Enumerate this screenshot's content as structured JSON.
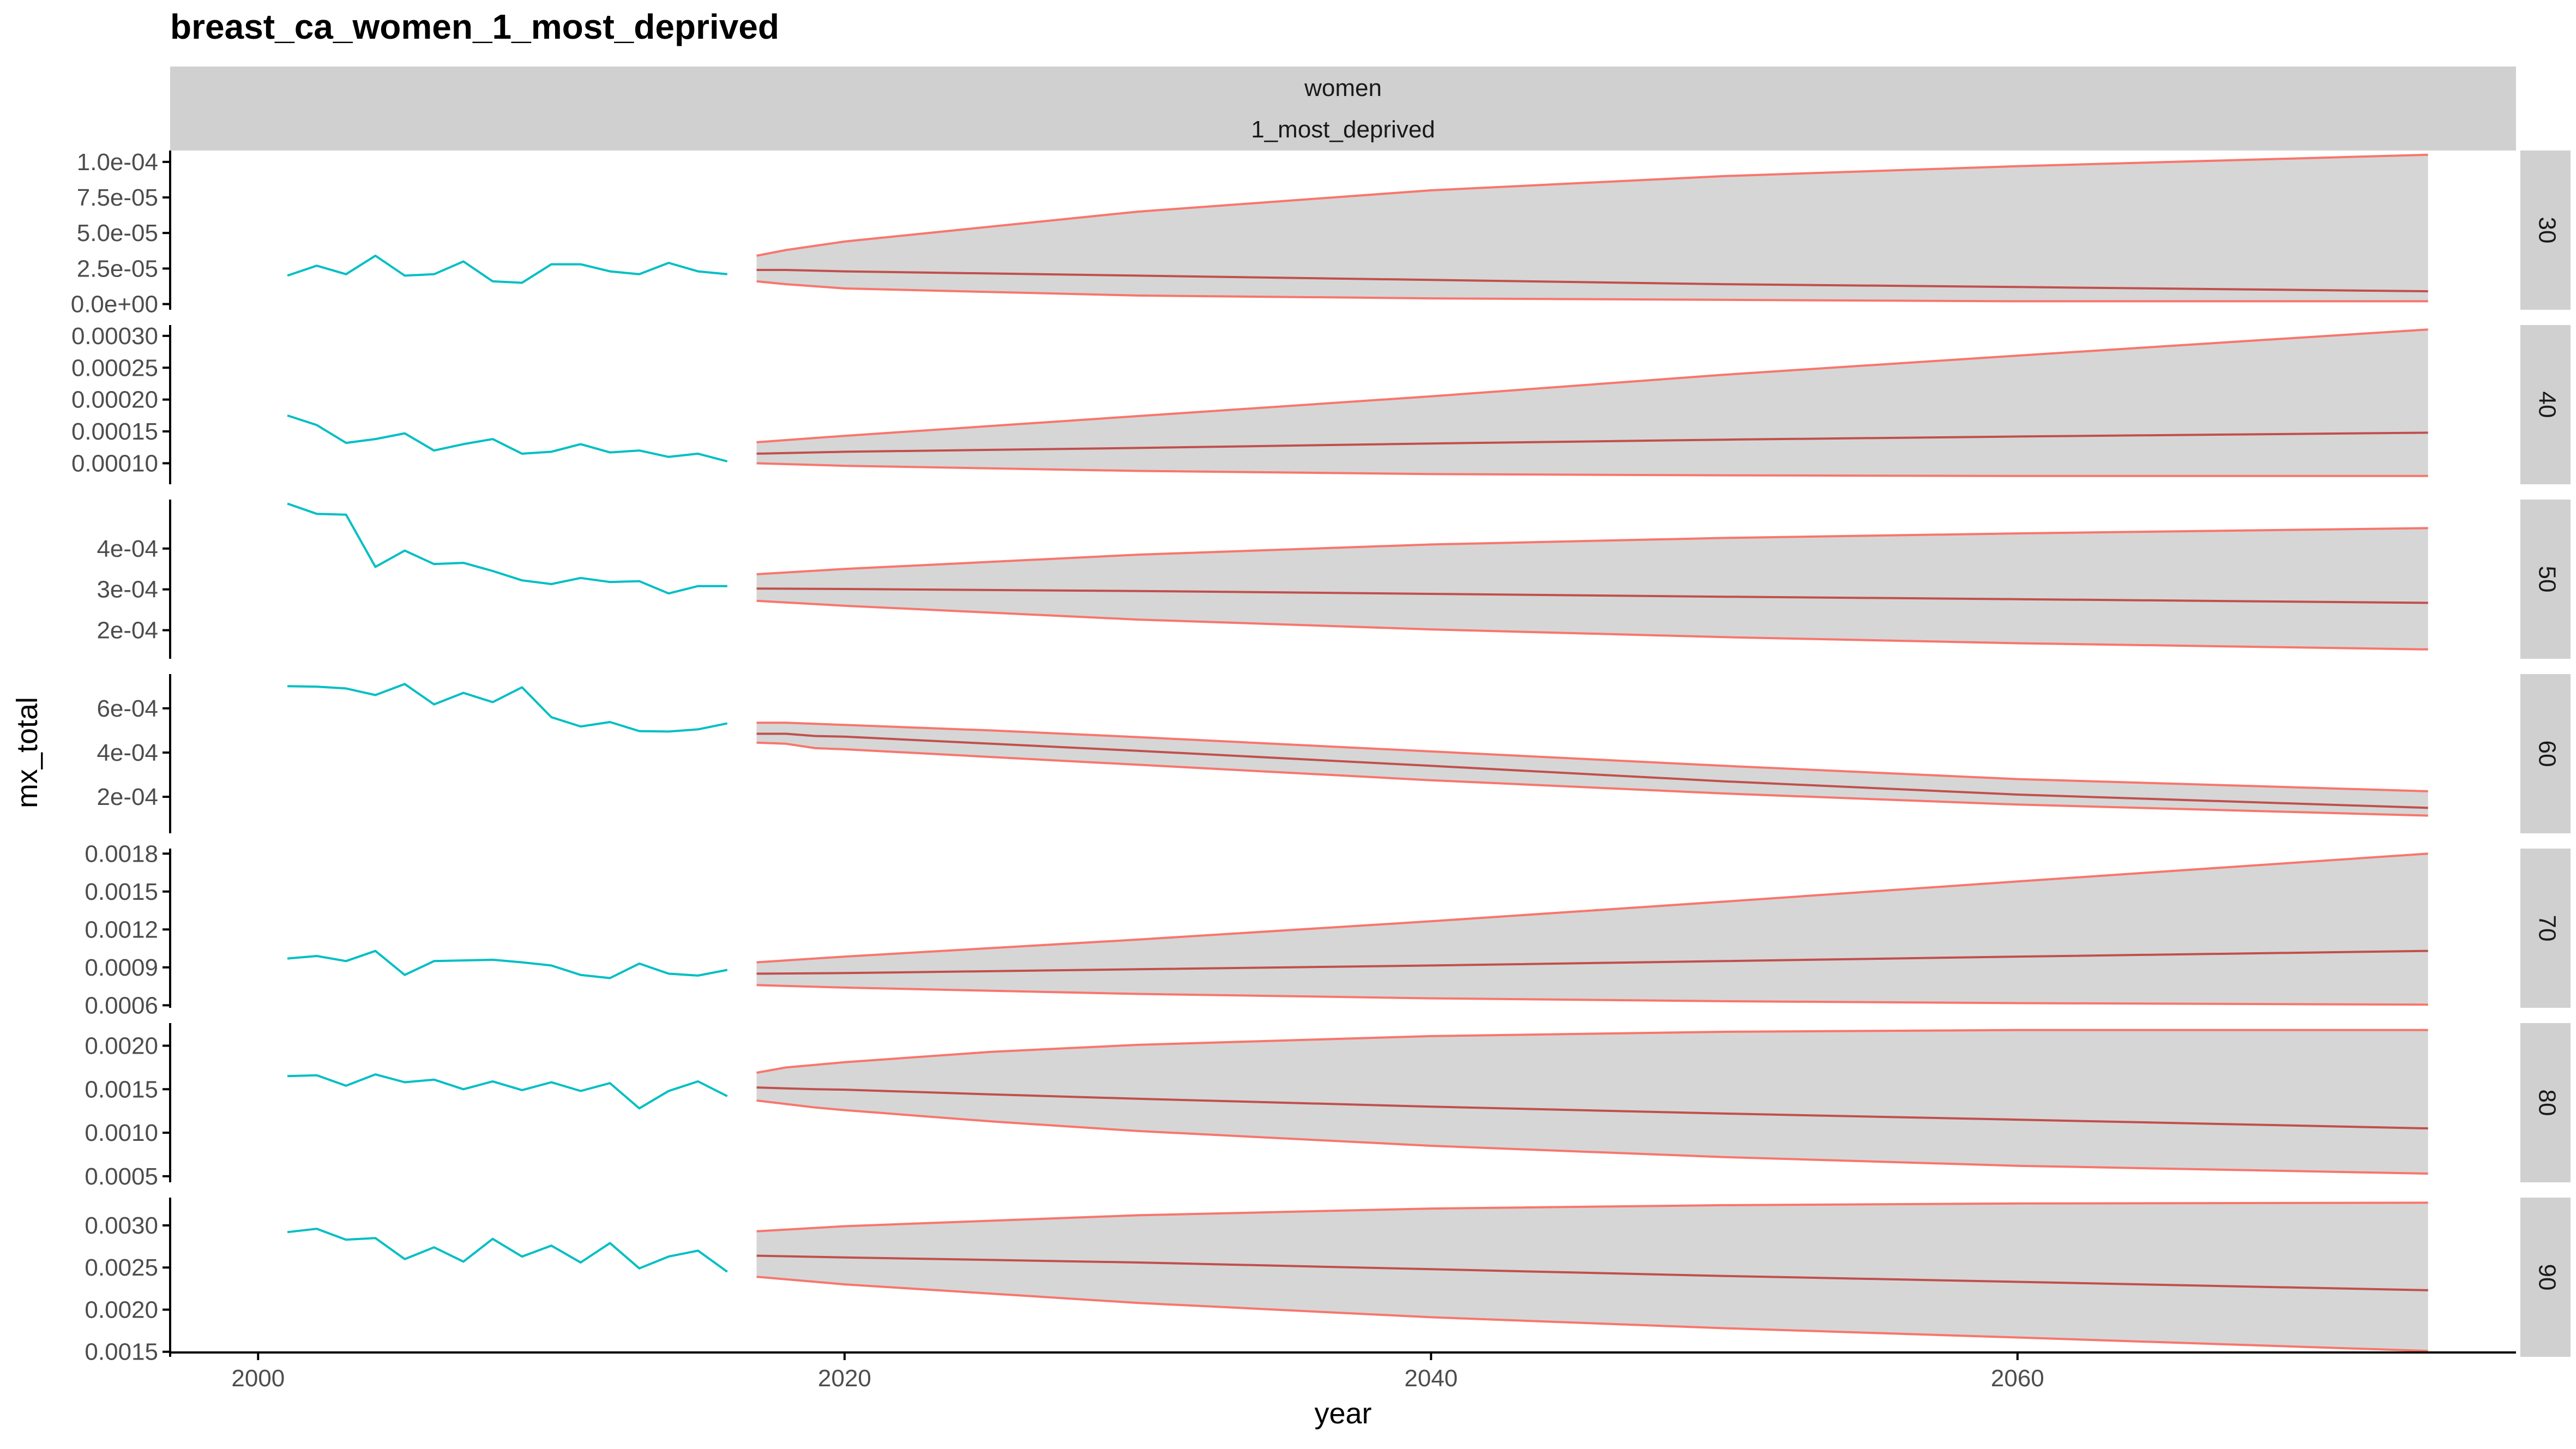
{
  "chart_data": {
    "type": "line",
    "title": "breast_ca_women_1_most_deprived",
    "xlabel": "year",
    "ylabel": "mx_total",
    "strip_top": [
      "women",
      "1_most_deprived"
    ],
    "xlim": [
      1997,
      2077
    ],
    "x_ticks": [
      2000,
      2020,
      2040,
      2060
    ],
    "colors": {
      "observed": "#00BFC4",
      "forecast": "#F8766D",
      "forecast_mean": "#C0504D",
      "band": "#D6D6D6",
      "strip": "#D0D0D0",
      "axis": "#000000"
    },
    "grid": false,
    "legend": "none",
    "facets": [
      {
        "label": "30",
        "ylim": [
          -4e-06,
          0.000108
        ],
        "ticks": [
          {
            "v": 0.0,
            "t": "0.0e+00"
          },
          {
            "v": 2.5e-05,
            "t": "2.5e-05"
          },
          {
            "v": 5e-05,
            "t": "5.0e-05"
          },
          {
            "v": 7.5e-05,
            "t": "7.5e-05"
          },
          {
            "v": 0.0001,
            "t": "1.0e-04"
          }
        ],
        "observed": {
          "x": [
            2001,
            2002,
            2003,
            2004,
            2005,
            2006,
            2007,
            2008,
            2009,
            2010,
            2011,
            2012,
            2013,
            2014,
            2015,
            2016
          ],
          "y": [
            2e-05,
            2.7e-05,
            2.1e-05,
            3.4e-05,
            2e-05,
            2.1e-05,
            3e-05,
            1.6e-05,
            1.5e-05,
            2.8e-05,
            2.8e-05,
            2.3e-05,
            2.1e-05,
            2.9e-05,
            2.3e-05,
            2.1e-05
          ]
        },
        "forecast": {
          "x": [
            2017,
            2018,
            2020,
            2030,
            2040,
            2050,
            2060,
            2074
          ],
          "mean": [
            2.4e-05,
            2.4e-05,
            2.3e-05,
            2e-05,
            1.7e-05,
            1.4e-05,
            1.2e-05,
            9e-06
          ],
          "lower": [
            1.6e-05,
            1.4e-05,
            1.1e-05,
            6e-06,
            4e-06,
            3e-06,
            2e-06,
            2e-06
          ],
          "upper": [
            3.4e-05,
            3.8e-05,
            4.4e-05,
            6.5e-05,
            8e-05,
            9e-05,
            9.7e-05,
            0.000105
          ]
        }
      },
      {
        "label": "40",
        "ylim": [
          6.7e-05,
          0.000317
        ],
        "ticks": [
          {
            "v": 0.0001,
            "t": "0.00010"
          },
          {
            "v": 0.00015,
            "t": "0.00015"
          },
          {
            "v": 0.0002,
            "t": "0.00020"
          },
          {
            "v": 0.00025,
            "t": "0.00025"
          },
          {
            "v": 0.0003,
            "t": "0.00030"
          }
        ],
        "observed": {
          "x": [
            2001,
            2002,
            2003,
            2004,
            2005,
            2006,
            2007,
            2008,
            2009,
            2010,
            2011,
            2012,
            2013,
            2014,
            2015,
            2016
          ],
          "y": [
            0.000175,
            0.00016,
            0.000132,
            0.000138,
            0.000147,
            0.00012,
            0.00013,
            0.000138,
            0.000115,
            0.000118,
            0.00013,
            0.000117,
            0.00012,
            0.00011,
            0.000115,
            0.000103
          ]
        },
        "forecast": {
          "x": [
            2017,
            2020,
            2030,
            2040,
            2050,
            2060,
            2074
          ],
          "mean": [
            0.000115,
            0.000118,
            0.000124,
            0.000131,
            0.000137,
            0.000142,
            0.000148
          ],
          "lower": [
            0.0001,
            9.6e-05,
            8.8e-05,
            8.3e-05,
            8.1e-05,
            8e-05,
            8e-05
          ],
          "upper": [
            0.000133,
            0.000143,
            0.000174,
            0.000205,
            0.000239,
            0.000269,
            0.00031
          ]
        }
      },
      {
        "label": "50",
        "ylim": [
          0.00013,
          0.00052
        ],
        "ticks": [
          {
            "v": 0.0002,
            "t": "2e-04"
          },
          {
            "v": 0.0003,
            "t": "3e-04"
          },
          {
            "v": 0.0004,
            "t": "4e-04"
          }
        ],
        "observed": {
          "x": [
            2001,
            2002,
            2003,
            2004,
            2005,
            2006,
            2007,
            2008,
            2009,
            2010,
            2011,
            2012,
            2013,
            2014,
            2015,
            2016
          ],
          "y": [
            0.00051,
            0.000485,
            0.000483,
            0.000355,
            0.000395,
            0.000362,
            0.000365,
            0.000345,
            0.000322,
            0.000313,
            0.000328,
            0.000318,
            0.00032,
            0.00029,
            0.000308,
            0.000308
          ]
        },
        "forecast": {
          "x": [
            2017,
            2020,
            2030,
            2040,
            2050,
            2060,
            2074
          ],
          "mean": [
            0.000302,
            0.000301,
            0.000296,
            0.000289,
            0.000282,
            0.000276,
            0.000267
          ],
          "lower": [
            0.000272,
            0.00026,
            0.000226,
            0.000202,
            0.000183,
            0.000168,
            0.000153
          ],
          "upper": [
            0.000337,
            0.00035,
            0.000385,
            0.00041,
            0.000426,
            0.000437,
            0.00045
          ]
        }
      },
      {
        "label": "60",
        "ylim": [
          3.5e-05,
          0.000755
        ],
        "ticks": [
          {
            "v": 0.0002,
            "t": "2e-04"
          },
          {
            "v": 0.0004,
            "t": "4e-04"
          },
          {
            "v": 0.0006,
            "t": "6e-04"
          }
        ],
        "observed": {
          "x": [
            2001,
            2002,
            2003,
            2004,
            2005,
            2006,
            2007,
            2008,
            2009,
            2010,
            2011,
            2012,
            2013,
            2014,
            2015,
            2016
          ],
          "y": [
            0.0007,
            0.000698,
            0.00069,
            0.00066,
            0.00071,
            0.000618,
            0.00067,
            0.000628,
            0.000695,
            0.00056,
            0.000518,
            0.000538,
            0.000497,
            0.000495,
            0.000505,
            0.000532
          ]
        },
        "forecast": {
          "x": [
            2017,
            2018,
            2019,
            2020,
            2025,
            2030,
            2040,
            2050,
            2060,
            2074
          ],
          "mean": [
            0.000485,
            0.000485,
            0.000475,
            0.000472,
            0.00044,
            0.000408,
            0.00034,
            0.00027,
            0.00021,
            0.00015
          ],
          "lower": [
            0.000445,
            0.00044,
            0.00042,
            0.000415,
            0.00038,
            0.000345,
            0.000275,
            0.000215,
            0.000165,
            0.000115
          ],
          "upper": [
            0.000535,
            0.000535,
            0.00053,
            0.000525,
            0.0005,
            0.00047,
            0.000405,
            0.00034,
            0.00028,
            0.000225
          ]
        }
      },
      {
        "label": "70",
        "ylim": [
          0.00058,
          0.00184
        ],
        "ticks": [
          {
            "v": 0.0006,
            "t": "0.0006"
          },
          {
            "v": 0.0009,
            "t": "0.0009"
          },
          {
            "v": 0.0012,
            "t": "0.0012"
          },
          {
            "v": 0.0015,
            "t": "0.0015"
          },
          {
            "v": 0.0018,
            "t": "0.0018"
          }
        ],
        "observed": {
          "x": [
            2001,
            2002,
            2003,
            2004,
            2005,
            2006,
            2007,
            2008,
            2009,
            2010,
            2011,
            2012,
            2013,
            2014,
            2015,
            2016
          ],
          "y": [
            0.00097,
            0.00099,
            0.00095,
            0.00103,
            0.00084,
            0.00095,
            0.000955,
            0.00096,
            0.00094,
            0.000915,
            0.00084,
            0.000815,
            0.00093,
            0.00085,
            0.000835,
            0.00088
          ]
        },
        "forecast": {
          "x": [
            2017,
            2020,
            2030,
            2040,
            2050,
            2060,
            2074
          ],
          "mean": [
            0.00085,
            0.000855,
            0.000885,
            0.000915,
            0.00095,
            0.000985,
            0.00103
          ],
          "lower": [
            0.00076,
            0.00074,
            0.00069,
            0.000655,
            0.000632,
            0.000617,
            0.000605
          ],
          "upper": [
            0.00094,
            0.000985,
            0.00112,
            0.001265,
            0.00142,
            0.00158,
            0.0018
          ]
        }
      },
      {
        "label": "80",
        "ylim": [
          0.00043,
          0.00226
        ],
        "ticks": [
          {
            "v": 0.0005,
            "t": "0.0005"
          },
          {
            "v": 0.001,
            "t": "0.0010"
          },
          {
            "v": 0.0015,
            "t": "0.0015"
          },
          {
            "v": 0.002,
            "t": "0.0020"
          }
        ],
        "observed": {
          "x": [
            2001,
            2002,
            2003,
            2004,
            2005,
            2006,
            2007,
            2008,
            2009,
            2010,
            2011,
            2012,
            2013,
            2014,
            2015,
            2016
          ],
          "y": [
            0.00165,
            0.00166,
            0.00154,
            0.00167,
            0.00158,
            0.00161,
            0.0015,
            0.00159,
            0.00149,
            0.00158,
            0.00148,
            0.00157,
            0.00128,
            0.00148,
            0.00159,
            0.00142
          ]
        },
        "forecast": {
          "x": [
            2017,
            2018,
            2019,
            2020,
            2025,
            2030,
            2040,
            2050,
            2060,
            2074
          ],
          "mean": [
            0.00152,
            0.00151,
            0.0015,
            0.001495,
            0.00144,
            0.00139,
            0.0013,
            0.00122,
            0.00115,
            0.00105
          ],
          "lower": [
            0.00137,
            0.00133,
            0.00129,
            0.00126,
            0.00113,
            0.00102,
            0.00085,
            0.00072,
            0.00062,
            0.00053
          ],
          "upper": [
            0.00169,
            0.00175,
            0.00178,
            0.00181,
            0.00193,
            0.00201,
            0.00211,
            0.00216,
            0.00218,
            0.00218
          ]
        }
      },
      {
        "label": "90",
        "ylim": [
          0.00144,
          0.00333
        ],
        "ticks": [
          {
            "v": 0.0015,
            "t": "0.0015"
          },
          {
            "v": 0.002,
            "t": "0.0020"
          },
          {
            "v": 0.0025,
            "t": "0.0025"
          },
          {
            "v": 0.003,
            "t": "0.0030"
          }
        ],
        "observed": {
          "x": [
            2001,
            2002,
            2003,
            2004,
            2005,
            2006,
            2007,
            2008,
            2009,
            2010,
            2011,
            2012,
            2013,
            2014,
            2015,
            2016
          ],
          "y": [
            0.00292,
            0.00296,
            0.00283,
            0.00285,
            0.0026,
            0.00274,
            0.00257,
            0.00284,
            0.00263,
            0.00276,
            0.00256,
            0.00279,
            0.00249,
            0.00263,
            0.0027,
            0.00245
          ]
        },
        "forecast": {
          "x": [
            2017,
            2020,
            2030,
            2040,
            2050,
            2060,
            2074
          ],
          "mean": [
            0.00264,
            0.00262,
            0.00256,
            0.00248,
            0.0024,
            0.00233,
            0.00223
          ],
          "lower": [
            0.00239,
            0.0023,
            0.00208,
            0.00191,
            0.00178,
            0.00167,
            0.00151
          ],
          "upper": [
            0.00293,
            0.00299,
            0.00312,
            0.0032,
            0.00324,
            0.00326,
            0.00327
          ]
        }
      }
    ]
  }
}
